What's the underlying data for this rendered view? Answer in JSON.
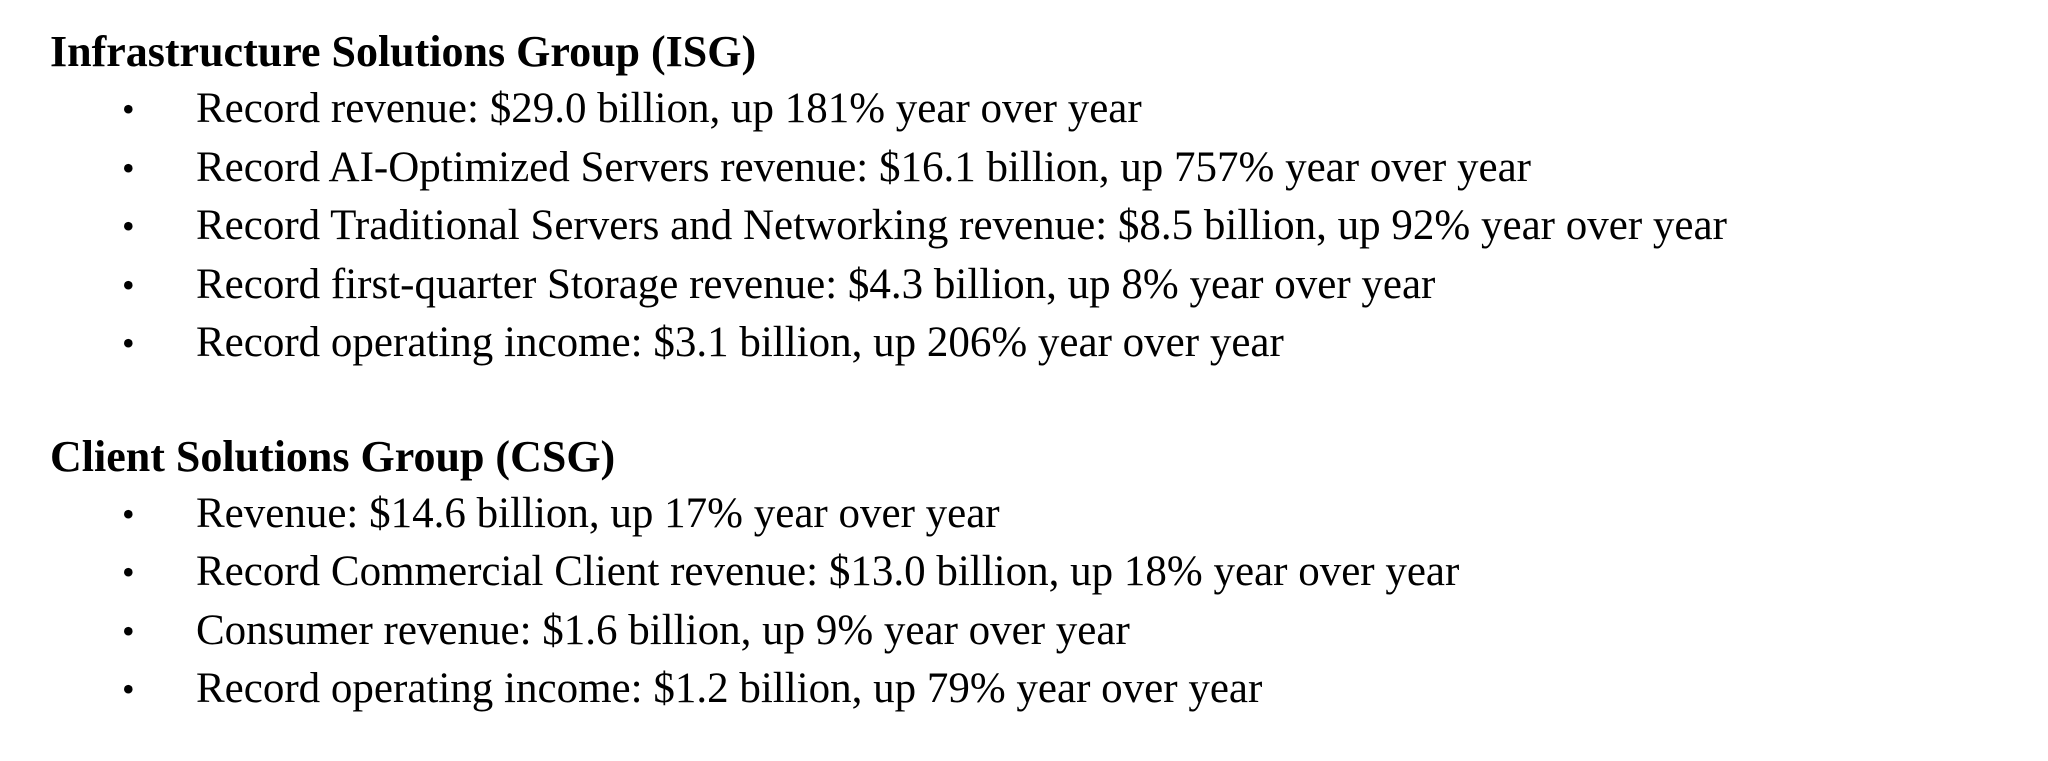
{
  "sections": [
    {
      "heading": "Infrastructure Solutions Group (ISG)",
      "bullet_symbol": "•",
      "items": [
        "Record revenue: $29.0 billion, up 181% year over year",
        "Record AI-Optimized Servers revenue: $16.1 billion, up 757% year over year",
        "Record Traditional Servers and Networking revenue: $8.5 billion, up 92% year over year",
        "Record first-quarter Storage revenue: $4.3 billion, up 8% year over year",
        "Record operating income: $3.1 billion, up 206% year over year"
      ]
    },
    {
      "heading": "Client Solutions Group (CSG)",
      "bullet_symbol": "•",
      "items": [
        "Revenue: $14.6 billion, up 17% year over year",
        "Record Commercial Client revenue: $13.0 billion, up 18% year over year",
        "Consumer revenue: $1.6 billion, up 9% year over year",
        "Record operating income: $1.2 billion, up 79% year over year"
      ]
    }
  ]
}
